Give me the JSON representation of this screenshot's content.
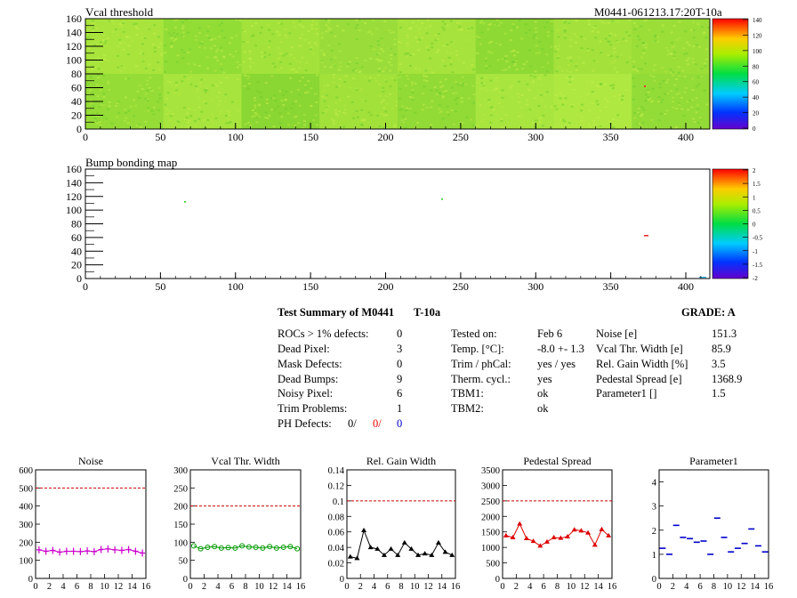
{
  "module_id": "M0441-061213.17:20T-10a",
  "maps": [
    {
      "title": "Vcal threshold",
      "x_ticks": [
        "0",
        "50",
        "100",
        "150",
        "200",
        "250",
        "300",
        "350",
        "400"
      ],
      "y_ticks": [
        "0",
        "20",
        "40",
        "60",
        "80",
        "100",
        "120",
        "140",
        "160"
      ],
      "scale_ticks": [
        "0",
        "20",
        "40",
        "60",
        "80",
        "100",
        "120",
        "140"
      ]
    },
    {
      "title": "Bump bonding map",
      "x_ticks": [
        "0",
        "50",
        "100",
        "150",
        "200",
        "250",
        "300",
        "350",
        "400"
      ],
      "y_ticks": [
        "0",
        "20",
        "40",
        "60",
        "80",
        "100",
        "120",
        "140",
        "160"
      ],
      "scale_ticks": [
        "-2",
        "-1.5",
        "-1",
        "-0.5",
        "0",
        "0.5",
        "1",
        "1.5",
        "2"
      ]
    }
  ],
  "summary": {
    "title": "Test Summary of M0441",
    "temp_tag": "T-10a",
    "grade": "GRADE:  A",
    "col1": [
      {
        "label": "ROCs > 1% defects:",
        "value": "0"
      },
      {
        "label": "Dead Pixel:",
        "value": "3"
      },
      {
        "label": "Mask Defects:",
        "value": "0"
      },
      {
        "label": "Dead Bumps:",
        "value": "9"
      },
      {
        "label": "Noisy Pixel:",
        "value": "6"
      },
      {
        "label": "Trim Problems:",
        "value": "1"
      }
    ],
    "ph_defects": {
      "label": "PH Defects:",
      "v1": "0/",
      "v2": "0/",
      "v3": "0"
    },
    "col2": [
      {
        "label": "Tested on:",
        "value": "Feb 6"
      },
      {
        "label": "Temp. [°C]:",
        "value": "-8.0 +- 1.3"
      },
      {
        "label": "Trim / phCal:",
        "value": "yes / yes"
      },
      {
        "label": "Therm. cycl.:",
        "value": "yes"
      },
      {
        "label": "TBM1:",
        "value": "ok"
      },
      {
        "label": "TBM2:",
        "value": "ok"
      }
    ],
    "col3": [
      {
        "label": "Noise [e]",
        "value": "151.3"
      },
      {
        "label": "Vcal Thr. Width [e]",
        "value": "85.9"
      },
      {
        "label": "Rel. Gain Width [%]",
        "value": "3.5"
      },
      {
        "label": "Pedestal Spread [e]",
        "value": "1368.9"
      },
      {
        "label": "Parameter1 []",
        "value": "1.5"
      }
    ]
  },
  "chart_data": [
    {
      "type": "line",
      "title": "Noise",
      "color": "#cc00cc",
      "marker": "cross",
      "ylim": [
        0,
        600
      ],
      "yticks": [
        0,
        100,
        200,
        300,
        400,
        500,
        600
      ],
      "xlim": [
        0,
        16
      ],
      "xticks": [
        0,
        2,
        4,
        6,
        8,
        10,
        12,
        14,
        16
      ],
      "threshold": 500,
      "threshold_color": "#cc0000",
      "x": [
        0,
        1,
        2,
        3,
        4,
        5,
        6,
        7,
        8,
        9,
        10,
        11,
        12,
        13,
        14,
        15
      ],
      "values": [
        158,
        150,
        155,
        145,
        150,
        150,
        148,
        152,
        148,
        160,
        163,
        158,
        155,
        160,
        150,
        140
      ]
    },
    {
      "type": "line",
      "title": "Vcal Thr. Width",
      "color": "#009900",
      "marker": "circle",
      "ylim": [
        0,
        300
      ],
      "yticks": [
        0,
        50,
        100,
        150,
        200,
        250,
        300
      ],
      "xlim": [
        0,
        16
      ],
      "xticks": [
        0,
        2,
        4,
        6,
        8,
        10,
        12,
        14,
        16
      ],
      "threshold": 200,
      "threshold_color": "#cc0000",
      "x": [
        0,
        1,
        2,
        3,
        4,
        5,
        6,
        7,
        8,
        9,
        10,
        11,
        12,
        13,
        14,
        15
      ],
      "values": [
        90,
        82,
        86,
        88,
        84,
        85,
        84,
        90,
        87,
        86,
        84,
        88,
        84,
        86,
        88,
        82
      ]
    },
    {
      "type": "line",
      "title": "Rel. Gain Width",
      "color": "#000000",
      "marker": "triangle",
      "ylim": [
        0,
        0.14
      ],
      "yticks": [
        0,
        0.02,
        0.04,
        0.06,
        0.08,
        0.1,
        0.12,
        0.14
      ],
      "ytick_labels": [
        "0",
        "0.02",
        "0.04",
        "0.06",
        "0.08",
        "0.1",
        "0.12",
        "0.14"
      ],
      "xlim": [
        0,
        16
      ],
      "xticks": [
        0,
        2,
        4,
        6,
        8,
        10,
        12,
        14,
        16
      ],
      "threshold": 0.1,
      "threshold_color": "#cc0000",
      "x": [
        0,
        1,
        2,
        3,
        4,
        5,
        6,
        7,
        8,
        9,
        10,
        11,
        12,
        13,
        14,
        15
      ],
      "values": [
        0.028,
        0.026,
        0.062,
        0.04,
        0.038,
        0.03,
        0.038,
        0.03,
        0.046,
        0.038,
        0.03,
        0.032,
        0.03,
        0.046,
        0.034,
        0.03
      ]
    },
    {
      "type": "line",
      "title": "Pedestal Spread",
      "color": "#dd0000",
      "marker": "triangle",
      "ylim": [
        0,
        3500
      ],
      "yticks": [
        0,
        500,
        1000,
        1500,
        2000,
        2500,
        3000,
        3500
      ],
      "xlim": [
        0,
        16
      ],
      "xticks": [
        0,
        2,
        4,
        6,
        8,
        10,
        12,
        14,
        16
      ],
      "threshold": 2500,
      "threshold_color": "#cc0000",
      "x": [
        0,
        1,
        2,
        3,
        4,
        5,
        6,
        7,
        8,
        9,
        10,
        11,
        12,
        13,
        14,
        15
      ],
      "values": [
        1380,
        1320,
        1760,
        1290,
        1200,
        1050,
        1180,
        1320,
        1300,
        1350,
        1570,
        1540,
        1470,
        1080,
        1580,
        1380
      ]
    },
    {
      "type": "scatter",
      "title": "Parameter1",
      "color": "#0000cc",
      "marker": "hbar",
      "ylim": [
        0,
        4.5
      ],
      "yticks": [
        0,
        1,
        2,
        3,
        4
      ],
      "xlim": [
        0,
        16
      ],
      "xticks": [
        0,
        2,
        4,
        6,
        8,
        10,
        12,
        14,
        16
      ],
      "x": [
        0,
        1,
        2,
        3,
        4,
        5,
        6,
        7,
        8,
        9,
        10,
        11,
        12,
        13,
        14,
        15
      ],
      "values": [
        1.25,
        1.0,
        2.2,
        1.7,
        1.65,
        1.5,
        1.55,
        1.0,
        2.5,
        1.7,
        1.1,
        1.25,
        1.45,
        2.05,
        1.35,
        1.1
      ]
    }
  ]
}
